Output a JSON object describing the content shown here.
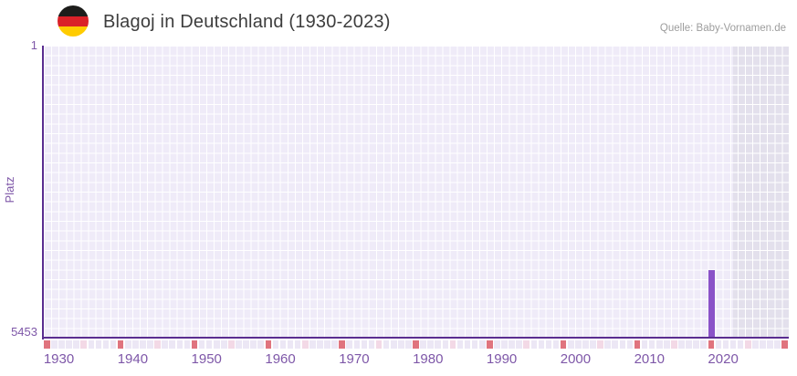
{
  "header": {
    "title": "Blagoj in Deutschland (1930-2023)",
    "source": "Quelle: Baby-Vornamen.de",
    "flag_icon": "german-flag-circle"
  },
  "chart_data": {
    "type": "bar",
    "title": "Blagoj in Deutschland (1930-2023)",
    "xlabel": "",
    "ylabel": "Platz",
    "y_axis": {
      "top_label": "1",
      "bottom_label": "5453",
      "min": 1,
      "max": 5453,
      "inverted": true
    },
    "x_axis": {
      "start_year": 1930,
      "end_year": 2030,
      "data_end_year": 2023,
      "tick_labels": [
        "1930",
        "1940",
        "1950",
        "1960",
        "1970",
        "1980",
        "1990",
        "2000",
        "2010",
        "2020"
      ]
    },
    "series": [
      {
        "name": "Platz",
        "points": [
          {
            "year": 2020,
            "rank": 4200
          }
        ]
      }
    ],
    "future_band": {
      "from_year": 2024,
      "to_year": 2030
    },
    "ruler_strip": {
      "decade_step": 10,
      "half_decade_step": 5,
      "decade_color": "#e0747e",
      "half_decade_color": "#f3d9e6",
      "default_color": "#ece7f5"
    },
    "colors": {
      "bar": "#8a52c8",
      "axis_line": "#5a2d90",
      "axis_label": "#7e57a8",
      "plot_background": "#efebf8",
      "grid_line": "#ffffff",
      "future_band": "#e3e0ec",
      "title_text": "#3d3d3d",
      "source_text": "#9d9d9d"
    },
    "grid": true,
    "legend": "none"
  }
}
